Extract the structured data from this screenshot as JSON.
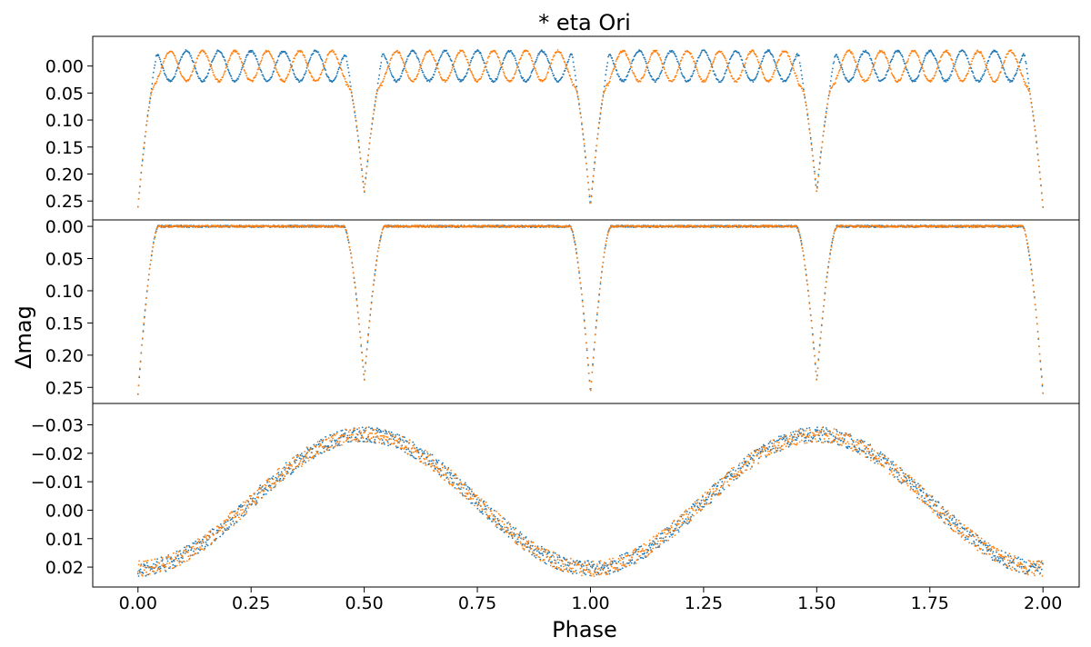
{
  "chart_data": {
    "type": "scatter",
    "title": "* eta Ori",
    "xlabel": "Phase",
    "ylabel": "Δmag",
    "xlim": [
      -0.1,
      2.08
    ],
    "x_ticks": [
      "0.00",
      "0.25",
      "0.50",
      "0.75",
      "1.00",
      "1.25",
      "1.50",
      "1.75",
      "2.00"
    ],
    "x_tick_values": [
      0,
      0.25,
      0.5,
      0.75,
      1.0,
      1.25,
      1.5,
      1.75,
      2.0
    ],
    "series_colors": [
      "#1f77b4",
      "#ff7f0e"
    ],
    "panels": [
      {
        "ylim": [
          0.285,
          -0.055
        ],
        "inverted": true,
        "y_ticks": [
          "0.00",
          "0.05",
          "0.10",
          "0.15",
          "0.20",
          "0.25"
        ],
        "y_tick_values": [
          0,
          0.05,
          0.1,
          0.15,
          0.2,
          0.25
        ],
        "primary_depth": 0.26,
        "secondary_depth": 0.235,
        "oscillation_amplitude": 0.028,
        "oscillation_cycles_per_phase": 14
      },
      {
        "ylim": [
          0.275,
          -0.01
        ],
        "inverted": true,
        "y_ticks": [
          "0.00",
          "0.05",
          "0.10",
          "0.15",
          "0.20",
          "0.25"
        ],
        "y_tick_values": [
          0,
          0.05,
          0.1,
          0.15,
          0.2,
          0.25
        ],
        "primary_depth": 0.26,
        "secondary_depth": 0.24
      },
      {
        "ylim": [
          0.027,
          -0.0375
        ],
        "inverted": true,
        "y_ticks": [
          "−0.03",
          "−0.02",
          "−0.01",
          "0.00",
          "0.01",
          "0.02"
        ],
        "y_tick_values": [
          -0.03,
          -0.02,
          -0.01,
          0,
          0.01,
          0.02
        ],
        "baseline": -0.003,
        "amplitude": 0.0235
      }
    ]
  }
}
